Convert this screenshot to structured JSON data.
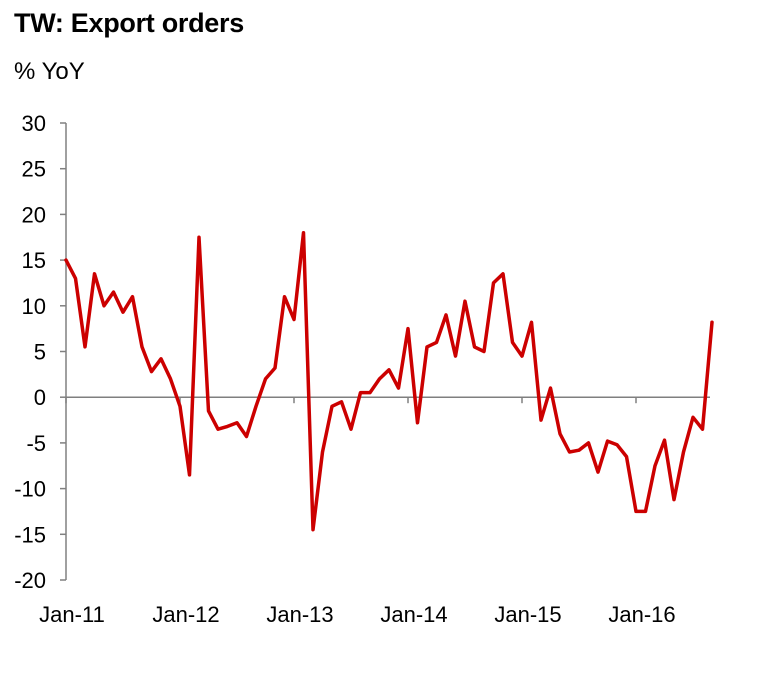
{
  "chart_data": {
    "type": "line",
    "title": "TW: Export orders",
    "ylabel": "% YoY",
    "xlabel": "",
    "ylim": [
      -20,
      30
    ],
    "yticks": [
      30,
      25,
      20,
      15,
      10,
      5,
      0,
      -5,
      -10,
      -15,
      -20
    ],
    "xticks": [
      "Jan-11",
      "Jan-12",
      "Jan-13",
      "Jan-14",
      "Jan-15",
      "Jan-16"
    ],
    "line_color": "#cc0000",
    "zero_line_color": "#7f7f7f",
    "x_start": "2011-01",
    "series": [
      {
        "values": [
          15.0,
          13.0,
          5.5,
          13.5,
          10.0,
          11.5,
          9.3,
          11.0,
          5.5,
          2.8,
          4.2,
          2.0,
          -1.0,
          -8.5,
          17.5,
          -1.5,
          -3.5,
          -3.2,
          -2.8,
          -4.3,
          -1.0,
          2.0,
          3.2,
          11.0,
          8.5,
          18.0,
          -14.5,
          -6.0,
          -1.0,
          -0.5,
          -3.5,
          0.5,
          0.5,
          2.0,
          3.0,
          1.0,
          7.5,
          -2.8,
          5.5,
          6.0,
          9.0,
          4.5,
          10.5,
          5.5,
          5.0,
          12.5,
          13.5,
          6.0,
          4.5,
          8.2,
          -2.5,
          1.0,
          -4.0,
          -6.0,
          -5.8,
          -5.0,
          -8.2,
          -4.8,
          -5.2,
          -6.5,
          -12.5,
          -12.5,
          -7.5,
          -4.7,
          -11.2,
          -6.0,
          -2.2,
          -3.5,
          8.2
        ]
      }
    ]
  }
}
